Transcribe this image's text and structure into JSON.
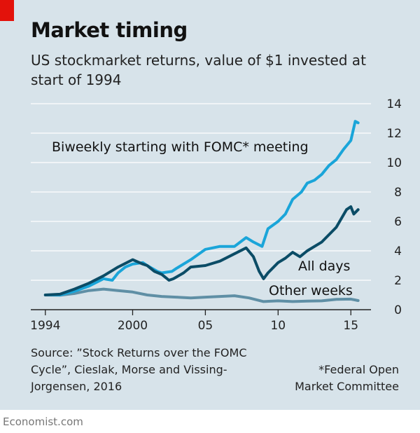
{
  "title": "Market timing",
  "subtitle": "US stockmarket returns, value of $1 invested at start of 1994",
  "source": "Source: ”Stock Returns over the FOMC Cycle”, Cieslak, Morse and Vissing-Jorgensen, 2016",
  "footnote": "*Federal Open Market Committee",
  "brand": "Economist.com",
  "colors": {
    "background": "#d7e3ea",
    "brand_red": "#e3120b",
    "fomc": "#1aa5d9",
    "all_days": "#0b4c66",
    "other_weeks": "#5f8fa5"
  },
  "chart_data": {
    "type": "line",
    "ylim": [
      0,
      14
    ],
    "xlim": [
      1993.0,
      2016.0
    ],
    "y_ticks": [
      "0",
      "2",
      "4",
      "6",
      "8",
      "10",
      "12",
      "14"
    ],
    "x_ticks": [
      {
        "value": 1994,
        "label": "1994"
      },
      {
        "value": 2000,
        "label": "2000"
      },
      {
        "value": 2005,
        "label": "05"
      },
      {
        "value": 2010,
        "label": "10"
      },
      {
        "value": 2015,
        "label": "15"
      }
    ],
    "grid": true,
    "series": [
      {
        "name": "Biweekly starting with FOMC* meeting",
        "color": "#1aa5d9",
        "x": [
          1994.0,
          1995.0,
          1996.0,
          1997.0,
          1998.0,
          1998.6,
          1999.0,
          1999.5,
          2000.0,
          2000.7,
          2001.0,
          2001.7,
          2002.0,
          2002.7,
          2003.0,
          2004.0,
          2005.0,
          2006.0,
          2007.0,
          2007.8,
          2008.3,
          2008.9,
          2009.3,
          2010.0,
          2010.5,
          2011.0,
          2011.6,
          2012.0,
          2012.5,
          2013.0,
          2013.5,
          2014.0,
          2014.5,
          2015.0,
          2015.3,
          2015.5
        ],
        "values": [
          1.0,
          1.0,
          1.25,
          1.6,
          2.1,
          2.0,
          2.5,
          2.9,
          3.1,
          3.2,
          3.0,
          2.6,
          2.5,
          2.6,
          2.8,
          3.4,
          4.1,
          4.3,
          4.3,
          4.9,
          4.6,
          4.3,
          5.5,
          6.0,
          6.5,
          7.5,
          8.0,
          8.6,
          8.8,
          9.2,
          9.8,
          10.2,
          10.9,
          11.5,
          12.8,
          12.7
        ]
      },
      {
        "name": "All days",
        "color": "#0b4c66",
        "x": [
          1994.0,
          1995.0,
          1996.0,
          1997.0,
          1998.0,
          1999.0,
          2000.0,
          2000.7,
          2001.0,
          2001.5,
          2002.0,
          2002.5,
          2002.8,
          2003.5,
          2004.0,
          2005.0,
          2006.0,
          2007.0,
          2007.8,
          2008.3,
          2008.7,
          2009.0,
          2009.3,
          2010.0,
          2010.5,
          2011.0,
          2011.5,
          2012.0,
          2013.0,
          2014.0,
          2014.7,
          2015.0,
          2015.2,
          2015.5
        ],
        "values": [
          1.0,
          1.05,
          1.4,
          1.8,
          2.3,
          2.9,
          3.4,
          3.1,
          3.0,
          2.6,
          2.4,
          2.0,
          2.1,
          2.5,
          2.9,
          3.0,
          3.3,
          3.8,
          4.2,
          3.6,
          2.6,
          2.1,
          2.5,
          3.2,
          3.5,
          3.9,
          3.6,
          4.0,
          4.6,
          5.6,
          6.8,
          7.0,
          6.5,
          6.8
        ]
      },
      {
        "name": "Other weeks",
        "color": "#5f8fa5",
        "x": [
          1994.0,
          1995.0,
          1996.0,
          1997.0,
          1998.0,
          1999.0,
          2000.0,
          2001.0,
          2002.0,
          2003.0,
          2004.0,
          2005.0,
          2006.0,
          2007.0,
          2008.0,
          2009.0,
          2010.0,
          2011.0,
          2012.0,
          2013.0,
          2014.0,
          2015.0,
          2015.5
        ],
        "values": [
          1.0,
          0.98,
          1.1,
          1.3,
          1.4,
          1.3,
          1.2,
          1.0,
          0.9,
          0.85,
          0.8,
          0.85,
          0.9,
          0.95,
          0.8,
          0.55,
          0.6,
          0.55,
          0.58,
          0.6,
          0.7,
          0.72,
          0.62
        ]
      }
    ]
  }
}
